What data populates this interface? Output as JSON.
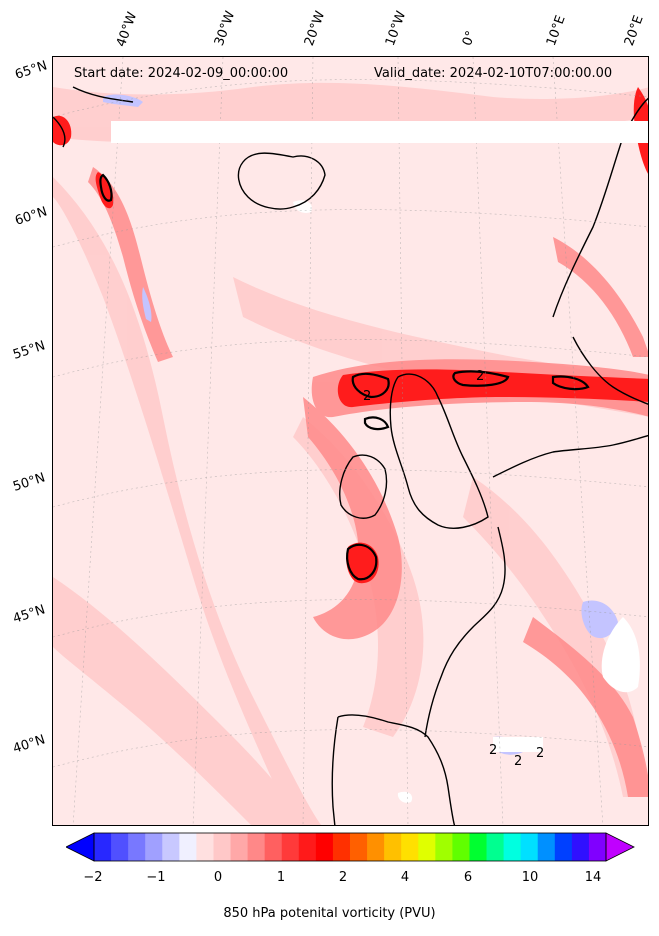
{
  "map": {
    "start_date_text": "Start date: 2024-02-09_00:00:00",
    "valid_date_text": "Valid_date: 2024-02-10T07:00:00.00",
    "longitude_labels": [
      "40°W",
      "30°W",
      "20°W",
      "10°W",
      "0°",
      "10°E",
      "20°E"
    ],
    "latitude_labels": [
      "65°N",
      "60°N",
      "55°N",
      "50°N",
      "45°N",
      "40°N"
    ],
    "contour_labels": [
      "2",
      "2",
      "2",
      "2",
      "2"
    ],
    "colors": {
      "background": "#ffe8e8",
      "land_outline": "#000000",
      "pv_low": "#ffd0d0",
      "pv_mid": "#ff8080",
      "pv_high": "#ff2020",
      "pv_peak": "#ff0000",
      "pv_negative": "#c8c8ff"
    }
  },
  "colorbar": {
    "title": "850 hPa potenital vorticity (PVU)",
    "tick_labels": [
      "−2",
      "−1",
      "0",
      "1",
      "2",
      "4",
      "6",
      "10",
      "14"
    ],
    "colors": [
      "#0000ff",
      "#2828ff",
      "#5050ff",
      "#7878ff",
      "#a0a0ff",
      "#c8c8ff",
      "#f0f0ff",
      "#ffe0e0",
      "#ffc8c8",
      "#ffa8a8",
      "#ff8888",
      "#ff6060",
      "#ff3a3a",
      "#ff1a1a",
      "#ff0000",
      "#ff3000",
      "#ff6000",
      "#ff9000",
      "#ffc000",
      "#ffe000",
      "#e0ff00",
      "#a0ff00",
      "#60ff00",
      "#00ff30",
      "#00ff90",
      "#00ffe0",
      "#00e0ff",
      "#0090ff",
      "#0040ff",
      "#3010ff",
      "#8000ff",
      "#c000ff"
    ]
  }
}
